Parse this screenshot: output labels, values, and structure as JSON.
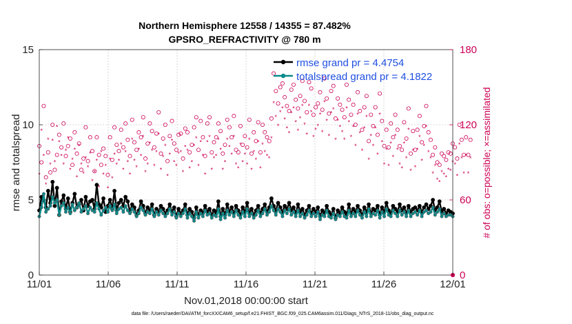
{
  "chart_data": {
    "type": "line",
    "title_line1": "Northern Hemisphere 12558 / 14355 = 87.482%",
    "title_line2": "GPSRO_REFRACTIVITY @ 780 m",
    "xlabel": "Nov.01,2018 00:00:00 start",
    "ylabel_left": "rmse and totalspread",
    "ylabel_right": "# of obs: o=possible; ×=assimilated",
    "footnote": "data file: /Users/raeder/DAI/ATM_forcXX/CAM6_setup/f.e21.FHIST_BGC.f09_025.CAM6assim.011/Diags_NTrS_2018-11/obs_diag_output.nc",
    "x_range_days": [
      0,
      30
    ],
    "x_ticks": [
      {
        "day": 0,
        "label": "11/01"
      },
      {
        "day": 5,
        "label": "11/06"
      },
      {
        "day": 10,
        "label": "11/11"
      },
      {
        "day": 15,
        "label": "11/16"
      },
      {
        "day": 20,
        "label": "11/21"
      },
      {
        "day": 25,
        "label": "11/26"
      },
      {
        "day": 30,
        "label": "12/01"
      }
    ],
    "ylim_left": [
      0,
      15
    ],
    "yticks_left": [
      "0",
      "5",
      "10",
      "15"
    ],
    "ylim_right": [
      0,
      180
    ],
    "yticks_right": [
      "0",
      "60",
      "120",
      "180"
    ],
    "grid": true,
    "colors": {
      "rmse": "#000000",
      "spread": "#0a8a8a",
      "obs": "#cc0055",
      "legend_text": "#1f4fe0"
    },
    "legend": {
      "position": "top-right",
      "entries": [
        {
          "name": "rmse grand pr = 4.4754",
          "series": "rmse"
        },
        {
          "name": "totalspread grand pr = 4.1822",
          "series": "spread"
        }
      ]
    },
    "series": [
      {
        "name": "rmse",
        "axis": "left",
        "values": [
          4.3,
          5.2,
          5.0,
          4.5,
          5.6,
          4.8,
          6.2,
          4.6,
          5.8,
          4.0,
          4.9,
          5.3,
          4.4,
          5.1,
          4.2,
          4.8,
          5.4,
          4.5,
          4.7,
          5.0,
          4.3,
          5.2,
          4.6,
          4.9,
          5.0,
          4.4,
          6.0,
          4.7,
          4.5,
          5.1,
          4.2,
          4.6,
          5.0,
          4.4,
          5.6,
          4.3,
          4.8,
          5.0,
          4.6,
          5.2,
          4.9,
          4.2,
          4.7,
          4.5,
          4.0,
          4.3,
          4.9,
          4.6,
          4.1,
          4.5,
          4.3,
          4.7,
          4.0,
          4.4,
          4.2,
          4.6,
          4.4,
          4.1,
          4.3,
          4.7,
          4.2,
          4.5,
          3.9,
          4.4,
          4.1,
          4.3,
          4.7,
          4.0,
          4.4,
          4.2,
          3.8,
          4.5,
          4.0,
          4.3,
          4.1,
          4.6,
          4.2,
          4.4,
          4.0,
          4.3,
          4.1,
          4.9,
          3.9,
          4.4,
          4.0,
          4.7,
          4.2,
          4.5,
          4.1,
          4.6,
          4.3,
          4.0,
          4.5,
          4.2,
          4.8,
          4.1,
          4.4,
          4.0,
          4.3,
          4.6,
          4.1,
          4.4,
          4.7,
          4.2,
          4.5,
          5.1,
          4.6,
          4.3,
          4.8,
          4.5,
          4.2,
          4.6,
          4.4,
          4.8,
          4.3,
          4.5,
          4.1,
          4.7,
          4.2,
          4.4,
          4.0,
          4.3,
          4.6,
          4.1,
          4.4,
          4.2,
          4.5,
          3.9,
          4.3,
          4.1,
          4.6,
          4.2,
          4.0,
          4.4,
          3.8,
          4.3,
          4.1,
          4.5,
          4.2,
          4.0,
          4.7,
          4.1,
          4.4,
          4.2,
          4.6,
          4.3,
          4.0,
          4.5,
          4.2,
          4.7,
          4.1,
          4.4,
          4.3,
          4.6,
          4.0,
          4.5,
          4.2,
          4.8,
          4.3,
          4.1,
          4.6,
          4.4,
          4.2,
          4.7,
          4.3,
          4.5,
          4.1,
          4.6,
          4.2,
          4.4,
          4.5,
          4.3,
          4.6,
          4.2,
          4.5,
          4.7,
          4.4,
          4.6,
          5.0,
          4.3,
          4.5,
          4.9,
          4.2,
          4.4,
          4.1,
          4.3,
          4.2,
          4.1
        ]
      },
      {
        "name": "totalspread",
        "axis": "left",
        "values": [
          3.9,
          4.5,
          5.4,
          4.2,
          4.4,
          4.6,
          5.2,
          4.8,
          5.0,
          4.0,
          4.6,
          4.8,
          4.2,
          4.5,
          4.1,
          4.7,
          4.3,
          4.5,
          4.8,
          4.2,
          4.4,
          4.6,
          4.1,
          4.5,
          4.3,
          4.2,
          4.8,
          4.4,
          4.0,
          4.3,
          4.5,
          4.2,
          4.6,
          4.3,
          4.7,
          4.1,
          4.4,
          4.5,
          4.2,
          4.6,
          4.3,
          4.1,
          4.4,
          4.2,
          3.9,
          4.1,
          4.5,
          4.3,
          4.0,
          4.2,
          4.1,
          4.4,
          3.9,
          4.2,
          4.0,
          4.3,
          4.1,
          3.9,
          4.1,
          4.4,
          4.0,
          4.2,
          3.8,
          4.1,
          3.9,
          4.1,
          4.4,
          3.8,
          4.1,
          3.9,
          3.6,
          4.2,
          3.8,
          4.1,
          3.9,
          4.3,
          4.0,
          4.1,
          3.8,
          4.0,
          3.9,
          4.4,
          3.7,
          4.1,
          3.8,
          4.3,
          4.0,
          4.2,
          3.9,
          4.3,
          4.0,
          3.8,
          4.2,
          3.9,
          4.4,
          3.9,
          4.1,
          3.8,
          4.0,
          4.3,
          3.9,
          4.1,
          4.4,
          4.0,
          4.2,
          4.6,
          4.3,
          4.0,
          4.4,
          4.2,
          3.9,
          4.3,
          4.1,
          4.4,
          4.0,
          4.2,
          3.9,
          4.3,
          3.9,
          4.1,
          3.8,
          4.0,
          4.3,
          3.9,
          4.1,
          3.9,
          4.2,
          3.7,
          4.0,
          3.9,
          4.3,
          3.9,
          3.8,
          4.1,
          3.7,
          4.0,
          3.9,
          4.2,
          3.9,
          3.8,
          4.3,
          3.9,
          4.1,
          3.9,
          4.3,
          4.0,
          3.8,
          4.2,
          3.9,
          4.4,
          3.9,
          4.1,
          4.0,
          4.3,
          3.8,
          4.2,
          3.9,
          4.4,
          4.0,
          3.9,
          4.3,
          4.1,
          3.9,
          4.3,
          4.0,
          4.2,
          3.9,
          4.3,
          3.9,
          4.1,
          4.2,
          4.0,
          4.3,
          3.9,
          4.2,
          4.3,
          4.1,
          4.2,
          4.5,
          4.0,
          4.2,
          4.4,
          3.9,
          4.1,
          3.9,
          4.0,
          4.0,
          3.9
        ]
      },
      {
        "name": "obs possible",
        "axis": "right",
        "values": [
          103,
          90,
          135,
          78,
          98,
          82,
          120,
          84,
          96,
          112,
          102,
          121,
          95,
          103,
          109,
          88,
          114,
          97,
          105,
          84,
          93,
          118,
          91,
          110,
          99,
          83,
          110,
          96,
          88,
          101,
          95,
          80,
          110,
          92,
          118,
          104,
          99,
          116,
          102,
          121,
          108,
          95,
          124,
          106,
          100,
          114,
          110,
          126,
          93,
          105,
          121,
          115,
          102,
          113,
          130,
          97,
          109,
          120,
          91,
          111,
          123,
          105,
          100,
          112,
          113,
          93,
          117,
          114,
          98,
          104,
          118,
          126,
          100,
          123,
          110,
          95,
          121,
          126,
          98,
          106,
          110,
          121,
          115,
          97,
          104,
          124,
          118,
          110,
          127,
          100,
          98,
          119,
          104,
          111,
          102,
          124,
          97,
          114,
          107,
          122,
          98,
          120,
          114,
          110,
          107,
          125,
          161,
          147,
          137,
          150,
          153,
          142,
          135,
          131,
          148,
          152,
          140,
          133,
          143,
          155,
          139,
          130,
          154,
          149,
          128,
          134,
          137,
          146,
          132,
          157,
          141,
          129,
          147,
          151,
          125,
          141,
          136,
          132,
          126,
          152,
          140,
          128,
          136,
          120,
          146,
          131,
          116,
          134,
          143,
          107,
          128,
          119,
          134,
          112,
          145,
          123,
          103,
          116,
          102,
          121,
          110,
          128,
          116,
          103,
          100,
          122,
          109,
          133,
          97,
          115,
          100,
          116,
          127,
          106,
          119,
          135,
          114,
          108,
          96,
          102,
          90,
          88,
          97,
          95,
          92,
          98,
          97,
          105,
          102,
          93,
          120,
          108,
          96,
          110,
          96,
          108
        ]
      },
      {
        "name": "obs assimilated",
        "axis": "right",
        "values": [
          80,
          115,
          95,
          72,
          108,
          88,
          107,
          90,
          118,
          106,
          95,
          88,
          99,
          109,
          84,
          92,
          100,
          78,
          103,
          88,
          81,
          93,
          86,
          97,
          75,
          82,
          91,
          70,
          98,
          80,
          87,
          69,
          92,
          77,
          96,
          88,
          91,
          104,
          84,
          98,
          90,
          80,
          108,
          91,
          86,
          100,
          95,
          110,
          82,
          88,
          105,
          99,
          87,
          98,
          112,
          84,
          94,
          103,
          79,
          96,
          107,
          90,
          87,
          97,
          98,
          82,
          102,
          99,
          85,
          90,
          103,
          109,
          87,
          106,
          95,
          80,
          106,
          110,
          84,
          93,
          95,
          108,
          100,
          84,
          90,
          108,
          102,
          96,
          110,
          88,
          85,
          104,
          90,
          96,
          88,
          108,
          84,
          98,
          92,
          106,
          85,
          104,
          98,
          95,
          93,
          109,
          137,
          126,
          119,
          130,
          133,
          124,
          117,
          113,
          129,
          133,
          122,
          115,
          125,
          135,
          120,
          112,
          135,
          130,
          110,
          116,
          119,
          128,
          114,
          138,
          123,
          111,
          129,
          132,
          108,
          123,
          118,
          114,
          108,
          133,
          122,
          110,
          118,
          103,
          128,
          113,
          99,
          117,
          126,
          92,
          111,
          103,
          117,
          96,
          128,
          106,
          88,
          100,
          87,
          105,
          94,
          111,
          100,
          88,
          85,
          105,
          93,
          116,
          83,
          99,
          86,
          100,
          110,
          91,
          103,
          118,
          98,
          93,
          81,
          87,
          76,
          74,
          82,
          80,
          78,
          84,
          83,
          90,
          88,
          79,
          104,
          93,
          81,
          95,
          81,
          93
        ]
      }
    ]
  }
}
